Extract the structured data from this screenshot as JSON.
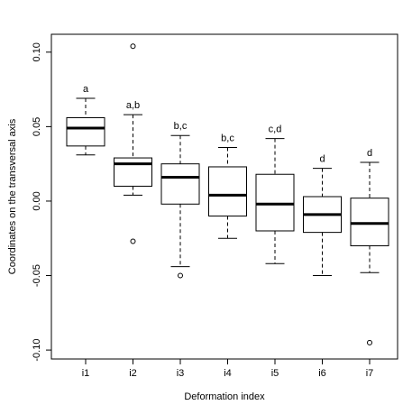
{
  "chart_data": {
    "type": "box",
    "xlabel": "Deformation index",
    "ylabel": "Coordinates on the transversal axis",
    "categories": [
      "i1",
      "i2",
      "i3",
      "i4",
      "i5",
      "i6",
      "i7"
    ],
    "boxes": [
      {
        "min": 0.031,
        "q1": 0.037,
        "median": 0.049,
        "q3": 0.056,
        "max": 0.069,
        "outliers": []
      },
      {
        "min": 0.004,
        "q1": 0.01,
        "median": 0.025,
        "q3": 0.029,
        "max": 0.058,
        "outliers": [
          0.104,
          -0.027
        ]
      },
      {
        "min": -0.044,
        "q1": -0.002,
        "median": 0.016,
        "q3": 0.025,
        "max": 0.044,
        "outliers": [
          -0.05
        ]
      },
      {
        "min": -0.025,
        "q1": -0.01,
        "median": 0.004,
        "q3": 0.023,
        "max": 0.036,
        "outliers": []
      },
      {
        "min": -0.042,
        "q1": -0.02,
        "median": -0.002,
        "q3": 0.018,
        "max": 0.042,
        "outliers": []
      },
      {
        "min": -0.05,
        "q1": -0.021,
        "median": -0.009,
        "q3": 0.003,
        "max": 0.022,
        "outliers": []
      },
      {
        "min": -0.048,
        "q1": -0.03,
        "median": -0.015,
        "q3": 0.002,
        "max": 0.026,
        "outliers": [
          -0.095
        ]
      }
    ],
    "annotations": [
      "a",
      "a,b",
      "b,c",
      "b,c",
      "c,d",
      "d",
      "d"
    ],
    "ylim": [
      -0.106,
      0.112
    ],
    "yticks": [
      {
        "value": 0.1,
        "label": "0.10"
      },
      0.05,
      {
        "value": 0,
        "label": "0.00"
      },
      -0.05,
      {
        "value": -0.1,
        "label": "-0.10"
      }
    ]
  }
}
